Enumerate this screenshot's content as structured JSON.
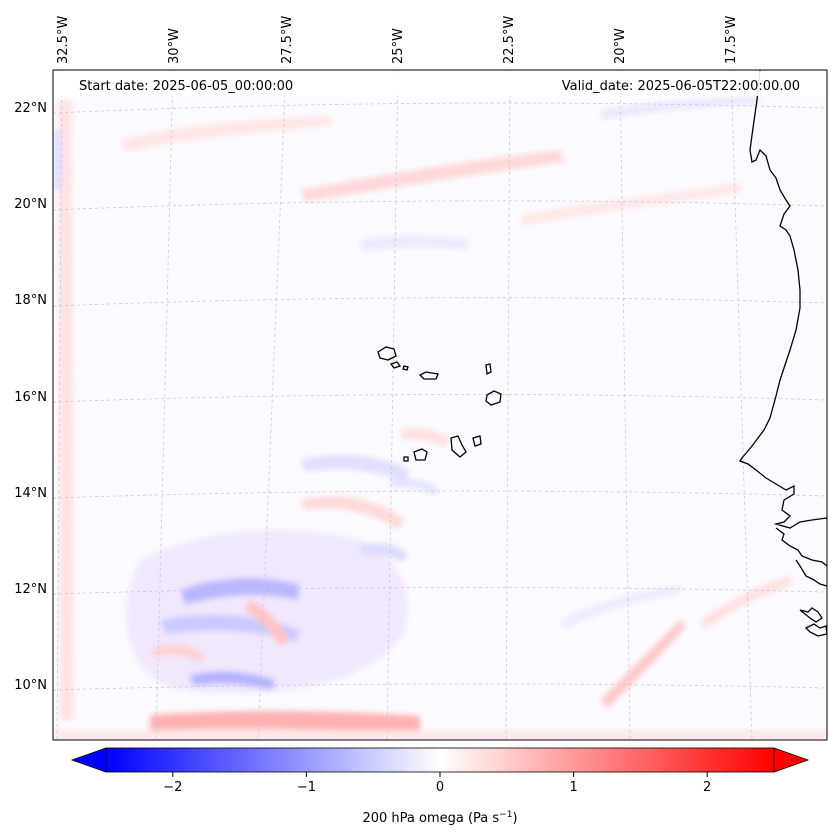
{
  "header": {
    "start_date": "Start date: 2025-06-05_00:00:00",
    "valid_date": "Valid_date: 2025-06-05T22:00:00.00"
  },
  "map": {
    "lon_labels": [
      "32.5°W",
      "30°W",
      "27.5°W",
      "25°W",
      "22.5°W",
      "20°W",
      "17.5°W"
    ],
    "lat_labels": [
      "22°N",
      "20°N",
      "18°N",
      "16°N",
      "14°N",
      "12°N",
      "10°N"
    ],
    "gridlines": true
  },
  "colorbar": {
    "ticks": [
      "−2",
      "−1",
      "0",
      "1",
      "2"
    ],
    "tick_values": [
      -2,
      -1,
      0,
      1,
      2
    ],
    "range": [
      -2.5,
      2.5
    ],
    "label": "200 hPa omega (Pa s",
    "label_sup": "−1",
    "label_end": ")",
    "cmap_low": "#0000ff",
    "cmap_mid": "#ffffff",
    "cmap_high": "#ff0000",
    "extend": "both"
  }
}
